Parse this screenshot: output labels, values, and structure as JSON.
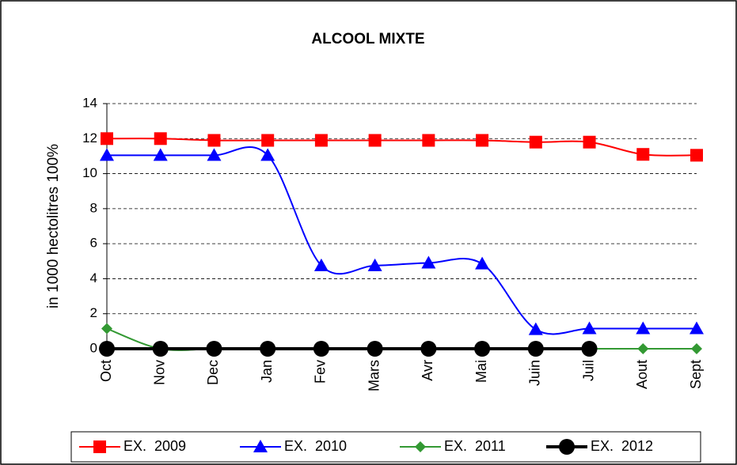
{
  "chart_data": {
    "type": "line",
    "title": "ALCOOL MIXTE",
    "y_label": "in 1000 hectolitres 100%",
    "categories": [
      "Oct",
      "Nov",
      "Dec",
      "Jan",
      "Fev",
      "Mars",
      "Avr",
      "Mai",
      "Juin",
      "Juil",
      "Aout",
      "Sept"
    ],
    "series": [
      {
        "name": "EX.  2009",
        "color": "#ff0000",
        "marker": "square",
        "values": [
          12,
          12,
          11.9,
          11.9,
          11.9,
          11.9,
          11.9,
          11.9,
          11.8,
          11.8,
          11.1,
          11.05
        ]
      },
      {
        "name": "EX.  2010",
        "color": "#0000ff",
        "marker": "triangle",
        "values": [
          11.05,
          11.05,
          11.05,
          11.05,
          4.75,
          4.75,
          4.9,
          4.85,
          1.1,
          1.15,
          1.15,
          1.15
        ]
      },
      {
        "name": "EX.  2011",
        "color": "#339933",
        "marker": "diamond",
        "values": [
          1.15,
          0,
          0,
          0,
          0,
          0,
          0,
          0,
          0,
          0,
          0,
          0
        ]
      },
      {
        "name": "EX.  2012",
        "color": "#000000",
        "marker": "circle",
        "values": [
          0,
          0,
          0,
          0,
          0,
          0,
          0,
          0,
          0,
          0,
          null,
          null
        ]
      }
    ],
    "ylim": [
      0,
      14
    ],
    "yticks": [
      0,
      2,
      4,
      6,
      8,
      10,
      12,
      14
    ],
    "grid": true,
    "smooth": true,
    "legend": "bottom"
  }
}
